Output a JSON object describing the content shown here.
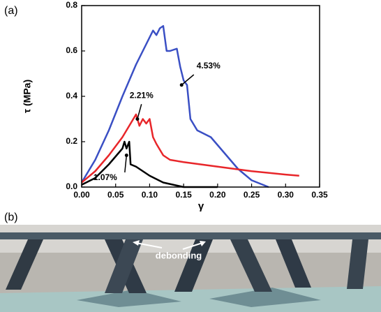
{
  "chart_data": {
    "type": "line",
    "xlabel": "γ",
    "ylabel": "τ (MPa)",
    "xlim": [
      0,
      0.35
    ],
    "ylim": [
      0,
      0.8
    ],
    "xticks": [
      {
        "value": 0,
        "label": "0.00"
      },
      {
        "value": 0.05,
        "label": "0.05"
      },
      {
        "value": 0.1,
        "label": "0.10"
      },
      {
        "value": 0.15,
        "label": "0.15"
      },
      {
        "value": 0.2,
        "label": "0.20"
      },
      {
        "value": 0.25,
        "label": "0.25"
      },
      {
        "value": 0.3,
        "label": "0.30"
      },
      {
        "value": 0.35,
        "label": "0.35"
      }
    ],
    "yticks": [
      {
        "value": 0,
        "label": "0.0"
      },
      {
        "value": 0.2,
        "label": "0.2"
      },
      {
        "value": 0.4,
        "label": "0.4"
      },
      {
        "value": 0.6,
        "label": "0.6"
      },
      {
        "value": 0.8,
        "label": "0.8"
      }
    ],
    "series": [
      {
        "name": "4.53%",
        "color": "#3a4fc4",
        "x": [
          0,
          0.02,
          0.04,
          0.06,
          0.08,
          0.1,
          0.105,
          0.11,
          0.115,
          0.12,
          0.125,
          0.13,
          0.14,
          0.145,
          0.15,
          0.155,
          0.16,
          0.17,
          0.19,
          0.21,
          0.23,
          0.25,
          0.275
        ],
        "values": [
          0.02,
          0.12,
          0.25,
          0.4,
          0.54,
          0.66,
          0.69,
          0.67,
          0.7,
          0.71,
          0.6,
          0.6,
          0.61,
          0.53,
          0.47,
          0.45,
          0.3,
          0.25,
          0.22,
          0.15,
          0.08,
          0.03,
          0
        ]
      },
      {
        "name": "2.21%",
        "color": "#e8262a",
        "x": [
          0,
          0.02,
          0.04,
          0.06,
          0.08,
          0.085,
          0.09,
          0.095,
          0.1,
          0.105,
          0.11,
          0.12,
          0.13,
          0.15,
          0.2,
          0.25,
          0.3,
          0.32
        ],
        "values": [
          0.02,
          0.07,
          0.14,
          0.22,
          0.32,
          0.27,
          0.3,
          0.28,
          0.3,
          0.22,
          0.19,
          0.14,
          0.12,
          0.11,
          0.09,
          0.07,
          0.055,
          0.05
        ]
      },
      {
        "name": "1.07%",
        "color": "#000000",
        "x": [
          0,
          0.02,
          0.04,
          0.06,
          0.063,
          0.066,
          0.07,
          0.072,
          0.08,
          0.1,
          0.12,
          0.15,
          0.2
        ],
        "values": [
          0.01,
          0.04,
          0.1,
          0.17,
          0.2,
          0.17,
          0.2,
          0.1,
          0.09,
          0.05,
          0.02,
          0,
          0
        ]
      }
    ]
  },
  "panel_labels": [
    "(a)",
    "(b)"
  ],
  "photo_annotation": "debonding"
}
